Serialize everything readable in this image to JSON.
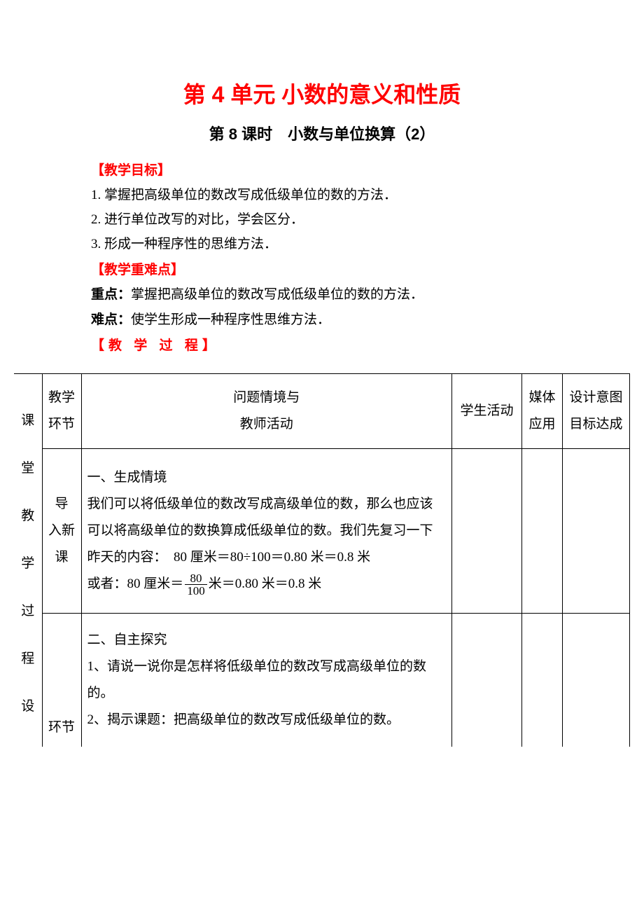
{
  "title": "第 4 单元  小数的意义和性质",
  "subtitle": "第 8 课时　小数与单位换算（2）",
  "sections": {
    "goals": {
      "label": "【教学目标】",
      "items": [
        "1. 掌握把高级单位的数改写成低级单位的数的方法．",
        "2. 进行单位改写的对比，学会区分．",
        "3. 形成一种程序性的思维方法．"
      ]
    },
    "keypoints": {
      "label": "【教学重难点】",
      "key_label": "重点：",
      "key_text": "掌握把高级单位的数改写成低级单位的数的方法．",
      "diff_label": "难点：",
      "diff_text": "使学生形成一种程序性思维方法．"
    },
    "process": {
      "label": "【教 学 过 程】"
    }
  },
  "table": {
    "vertical_label_chars": [
      "课",
      "堂",
      "教",
      "学",
      "过",
      "程",
      "设"
    ],
    "headers": {
      "stage": "教学环节",
      "main_l1": "问题情境与",
      "main_l2": "教师活动",
      "activity": "学生活动",
      "media": "媒体应用",
      "goal": "设计意图目标达成"
    },
    "row1": {
      "stage": "导　入新　课",
      "h": "一、生成情境",
      "p1": "我们可以将低级单位的数改写成高级单位的数，那么也应该可以将高级单位的数换算成低级单位的数。我们先复习一下昨天的内容：　80 厘米＝80÷100＝0.80 米＝0.8 米",
      "p2_a": "或者：80 厘米＝",
      "frac_num": "80",
      "frac_den": "100",
      "p2_b": "米＝0.80 米＝0.8 米"
    },
    "row2": {
      "stage": "环节",
      "h": "二、自主探究",
      "p1": "1、请说一说你是怎样将低级单位的数改写成高级单位的数的。",
      "p2": "2、揭示课题：把高级单位的数改写成低级单位的数。"
    }
  }
}
